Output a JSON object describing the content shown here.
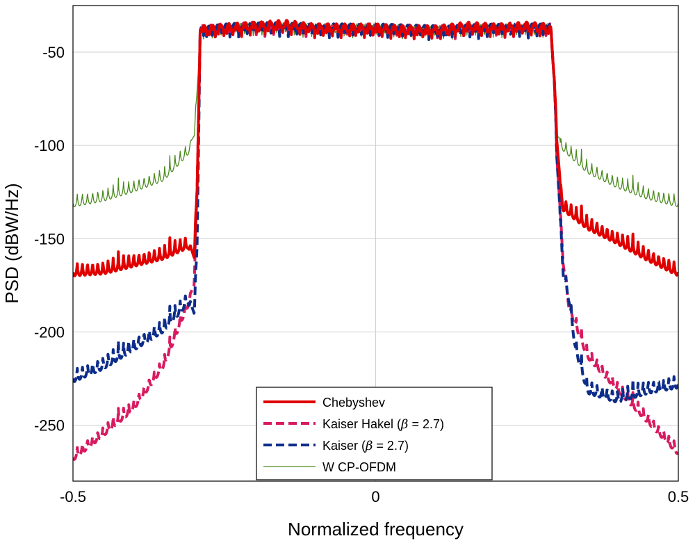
{
  "chart_data": {
    "type": "line",
    "title": "",
    "xlabel": "Normalized frequency",
    "ylabel": "PSD (dBW/Hz)",
    "xlim": [
      -0.5,
      0.5
    ],
    "ylim": [
      -280,
      -25
    ],
    "xticks": [
      -0.5,
      0,
      0.5
    ],
    "xtick_labels": [
      "-0.5",
      "0",
      "0.5"
    ],
    "yticks": [
      -250,
      -200,
      -150,
      -100,
      -50
    ],
    "ytick_labels": [
      "-250",
      "-200",
      "-150",
      "-100",
      "-50"
    ],
    "grid": true,
    "legend_position": "bottom-center",
    "series": [
      {
        "name": "Chebyshev",
        "color": "#e00000",
        "style": "solid-thick",
        "points": [
          [
            -0.5,
            -165
          ],
          [
            -0.45,
            -164
          ],
          [
            -0.4,
            -160
          ],
          [
            -0.35,
            -156
          ],
          [
            -0.31,
            -150
          ],
          [
            -0.3,
            -160
          ],
          [
            -0.295,
            -120
          ],
          [
            -0.29,
            -38
          ],
          [
            -0.25,
            -37
          ],
          [
            -0.2,
            -36
          ],
          [
            -0.15,
            -35
          ],
          [
            -0.1,
            -37
          ],
          [
            -0.05,
            -37
          ],
          [
            0,
            -37
          ],
          [
            0.05,
            -38
          ],
          [
            0.1,
            -38
          ],
          [
            0.15,
            -36
          ],
          [
            0.2,
            -37
          ],
          [
            0.25,
            -36
          ],
          [
            0.29,
            -37
          ],
          [
            0.295,
            -60
          ],
          [
            0.3,
            -100
          ],
          [
            0.305,
            -120
          ],
          [
            0.31,
            -130
          ],
          [
            0.35,
            -140
          ],
          [
            0.4,
            -148
          ],
          [
            0.45,
            -157
          ],
          [
            0.5,
            -165
          ]
        ]
      },
      {
        "name": "Kaiser Hakel (β = 2.7)",
        "color": "#d81b60",
        "style": "dashed-thick",
        "points": [
          [
            -0.5,
            -265
          ],
          [
            -0.45,
            -252
          ],
          [
            -0.4,
            -238
          ],
          [
            -0.35,
            -215
          ],
          [
            -0.32,
            -190
          ],
          [
            -0.3,
            -175
          ],
          [
            -0.295,
            -120
          ],
          [
            -0.29,
            -38
          ],
          [
            -0.2,
            -36
          ],
          [
            -0.1,
            -37
          ],
          [
            0,
            -37
          ],
          [
            0.1,
            -38
          ],
          [
            0.2,
            -37
          ],
          [
            0.29,
            -37
          ],
          [
            0.295,
            -60
          ],
          [
            0.3,
            -110
          ],
          [
            0.31,
            -160
          ],
          [
            0.32,
            -185
          ],
          [
            0.35,
            -210
          ],
          [
            0.4,
            -228
          ],
          [
            0.45,
            -245
          ],
          [
            0.5,
            -262
          ]
        ]
      },
      {
        "name": "Kaiser (β = 2.7)",
        "color": "#0d2d8a",
        "style": "dashed-thick",
        "points": [
          [
            -0.5,
            -222
          ],
          [
            -0.45,
            -215
          ],
          [
            -0.4,
            -205
          ],
          [
            -0.35,
            -195
          ],
          [
            -0.31,
            -180
          ],
          [
            -0.3,
            -190
          ],
          [
            -0.295,
            -150
          ],
          [
            -0.29,
            -38
          ],
          [
            -0.2,
            -36
          ],
          [
            -0.1,
            -37
          ],
          [
            0,
            -37
          ],
          [
            0.1,
            -38
          ],
          [
            0.2,
            -37
          ],
          [
            0.29,
            -37
          ],
          [
            0.295,
            -60
          ],
          [
            0.3,
            -110
          ],
          [
            0.31,
            -165
          ],
          [
            0.32,
            -180
          ],
          [
            0.33,
            -205
          ],
          [
            0.35,
            -228
          ],
          [
            0.4,
            -233
          ],
          [
            0.45,
            -228
          ],
          [
            0.5,
            -225
          ]
        ]
      },
      {
        "name": "W CP-OFDM",
        "color": "#4a8a1c",
        "style": "solid-thin",
        "points": [
          [
            -0.5,
            -128
          ],
          [
            -0.45,
            -125
          ],
          [
            -0.4,
            -120
          ],
          [
            -0.35,
            -114
          ],
          [
            -0.31,
            -100
          ],
          [
            -0.3,
            -95
          ],
          [
            -0.29,
            -38
          ],
          [
            -0.2,
            -36
          ],
          [
            -0.1,
            -37
          ],
          [
            0,
            -37
          ],
          [
            0.1,
            -38
          ],
          [
            0.2,
            -37
          ],
          [
            0.29,
            -37
          ],
          [
            0.3,
            -95
          ],
          [
            0.31,
            -98
          ],
          [
            0.35,
            -110
          ],
          [
            0.4,
            -118
          ],
          [
            0.45,
            -124
          ],
          [
            0.5,
            -128
          ]
        ]
      }
    ]
  },
  "legend": {
    "items": [
      {
        "label": "Chebyshev",
        "color": "#e00000",
        "dash": "",
        "width": 4
      },
      {
        "label_pre": "Kaiser Hakel (",
        "label_beta": "β",
        "label_post": " = 2.7)",
        "color": "#d81b60",
        "dash": "12,6",
        "width": 4
      },
      {
        "label_pre": "Kaiser (",
        "label_beta": "β",
        "label_post": " = 2.7)",
        "color": "#0d2d8a",
        "dash": "12,6",
        "width": 4
      },
      {
        "label": "W CP-OFDM",
        "color": "#4a8a1c",
        "dash": "",
        "width": 1.3
      }
    ]
  }
}
